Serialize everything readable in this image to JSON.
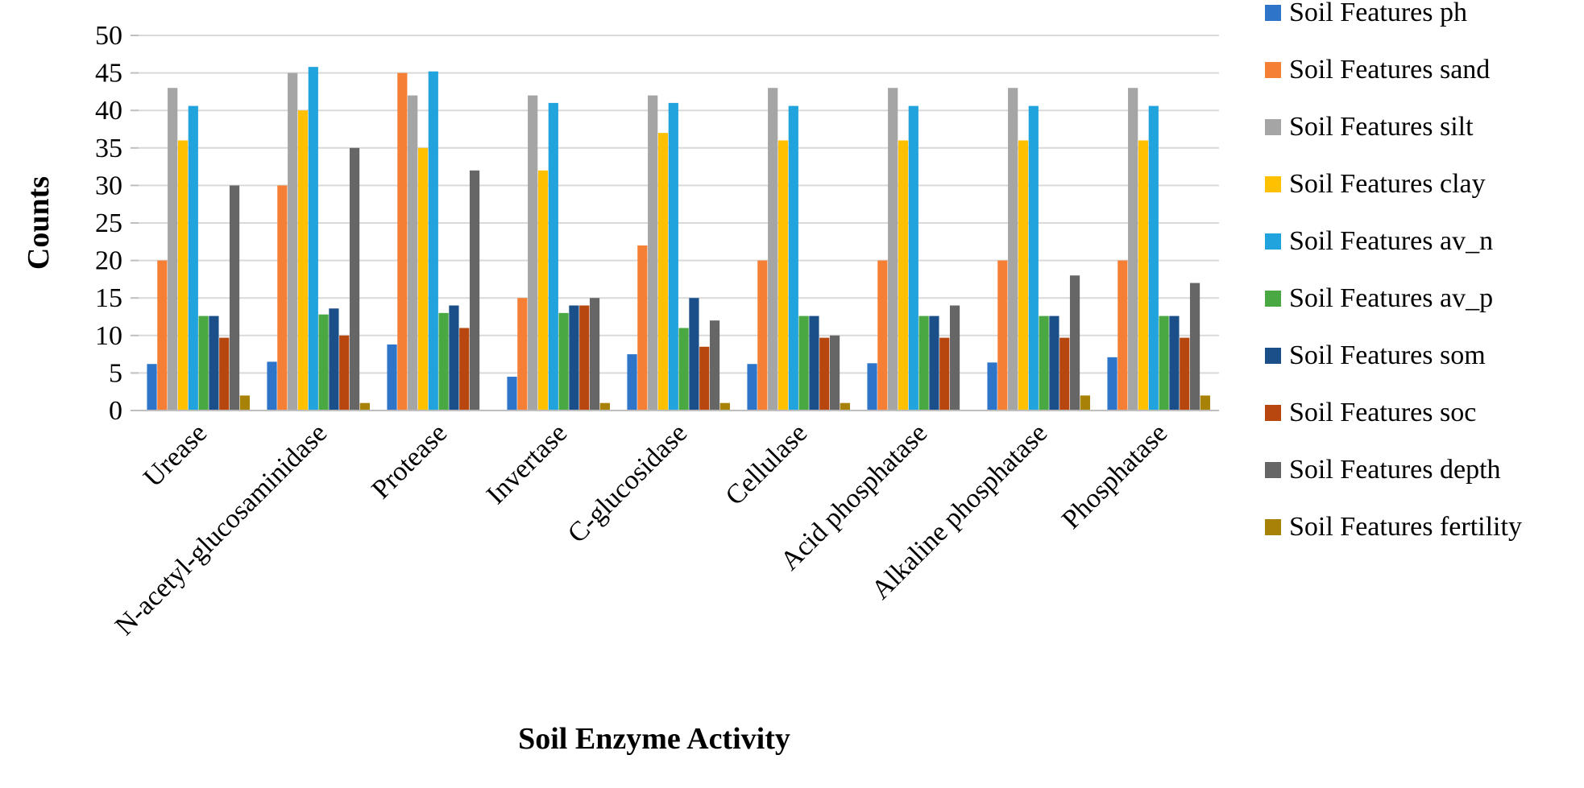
{
  "chart_data": {
    "type": "bar",
    "title": "",
    "xlabel": "Soil Enzyme Activity",
    "ylabel": "Counts",
    "ylim": [
      0,
      50
    ],
    "yticks": [
      0,
      5,
      10,
      15,
      20,
      25,
      30,
      35,
      40,
      45,
      50
    ],
    "grid": true,
    "legend_position": "right",
    "categories": [
      "Urease",
      "N-acetyl-glucosaminidase",
      "Protease",
      "Invertase",
      "C-glucosidase",
      "Cellulase",
      "Acid phosphatase",
      "Alkaline phosphatase",
      "Phosphatase"
    ],
    "series": [
      {
        "name": "Soil Features ph",
        "color": "#2e75c9",
        "values": [
          6.2,
          6.5,
          8.8,
          4.5,
          7.5,
          6.2,
          6.3,
          6.4,
          7.1
        ]
      },
      {
        "name": "Soil Features sand",
        "color": "#f47f35",
        "values": [
          20,
          30,
          45,
          15,
          22,
          20,
          20,
          20,
          20
        ]
      },
      {
        "name": "Soil Features silt",
        "color": "#a5a5a5",
        "values": [
          43,
          45,
          42,
          42,
          42,
          43,
          43,
          43,
          43
        ]
      },
      {
        "name": "Soil Features clay",
        "color": "#ffc000",
        "values": [
          36,
          40,
          35,
          32,
          37,
          36,
          36,
          36,
          36
        ]
      },
      {
        "name": "Soil Features av_n",
        "color": "#21a3dd",
        "values": [
          40.6,
          45.8,
          45.2,
          41,
          41,
          40.6,
          40.6,
          40.6,
          40.6
        ]
      },
      {
        "name": "Soil Features av_p",
        "color": "#4aa843",
        "values": [
          12.6,
          12.8,
          13,
          13,
          11,
          12.6,
          12.6,
          12.6,
          12.6
        ]
      },
      {
        "name": "Soil Features som",
        "color": "#1b4f8a",
        "values": [
          12.6,
          13.6,
          14,
          14,
          15,
          12.6,
          12.6,
          12.6,
          12.6
        ]
      },
      {
        "name": "Soil Features soc",
        "color": "#b7470f",
        "values": [
          9.7,
          10,
          11,
          14,
          8.5,
          9.7,
          9.7,
          9.7,
          9.7
        ]
      },
      {
        "name": "Soil Features depth",
        "color": "#666666",
        "values": [
          30,
          35,
          32,
          15,
          12,
          10,
          14,
          18,
          17
        ]
      },
      {
        "name": "Soil Features fertility",
        "color": "#a88207",
        "values": [
          2,
          1,
          0,
          1,
          1,
          1,
          0,
          2,
          2
        ]
      }
    ]
  }
}
